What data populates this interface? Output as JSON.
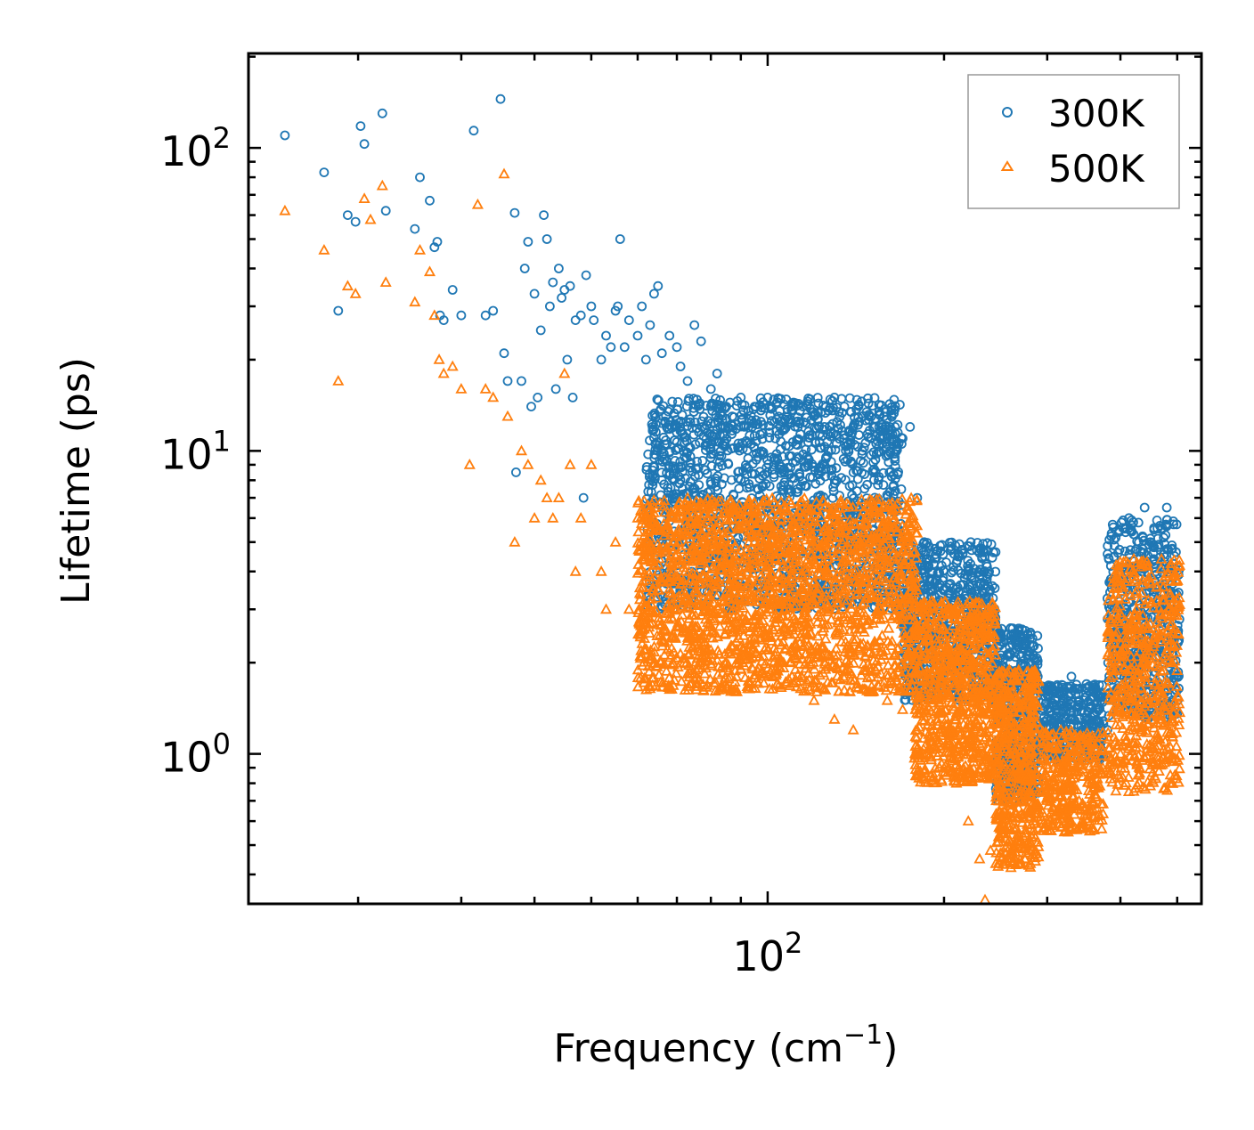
{
  "chart_data": {
    "type": "scatter",
    "title": "",
    "xlabel": "Frequency (cm",
    "xlabel_sup": "−1",
    "xlabel_end": ")",
    "ylabel": "Lifetime (ps)",
    "xscale": "log",
    "yscale": "log",
    "xlim": [
      13,
      550
    ],
    "ylim": [
      0.32,
      205
    ],
    "x_ticks": [
      {
        "value": 100,
        "base": "10",
        "exp": "2"
      }
    ],
    "y_ticks": [
      {
        "value": 1,
        "base": "10",
        "exp": "0"
      },
      {
        "value": 10,
        "base": "10",
        "exp": "1"
      },
      {
        "value": 100,
        "base": "10",
        "exp": "2"
      }
    ],
    "legend": {
      "placement": "top-right"
    },
    "series": [
      {
        "name": "300K",
        "color": "#1f77b4",
        "marker": "circle",
        "points": [
          [
            15,
            110
          ],
          [
            17.5,
            83
          ],
          [
            18.5,
            29
          ],
          [
            19.2,
            60
          ],
          [
            19.8,
            57
          ],
          [
            20.2,
            118
          ],
          [
            20.5,
            103
          ],
          [
            22,
            130
          ],
          [
            22.3,
            62
          ],
          [
            25,
            54
          ],
          [
            25.5,
            80
          ],
          [
            26.5,
            67
          ],
          [
            27,
            47
          ],
          [
            27.3,
            49
          ],
          [
            27.6,
            28
          ],
          [
            28,
            27
          ],
          [
            29,
            34
          ],
          [
            30,
            28
          ],
          [
            31.5,
            114
          ],
          [
            33,
            28
          ],
          [
            34,
            29
          ],
          [
            35.5,
            21
          ],
          [
            35,
            145
          ],
          [
            36,
            17
          ],
          [
            37,
            61
          ],
          [
            37.2,
            8.5
          ],
          [
            38,
            17
          ],
          [
            38.5,
            40
          ],
          [
            39,
            49
          ],
          [
            39.5,
            14
          ],
          [
            40,
            33
          ],
          [
            40.5,
            15
          ],
          [
            41,
            25
          ],
          [
            41.5,
            60
          ],
          [
            42,
            50
          ],
          [
            42.5,
            30
          ],
          [
            43,
            36
          ],
          [
            43.5,
            16
          ],
          [
            44,
            40
          ],
          [
            44.5,
            32
          ],
          [
            45,
            34
          ],
          [
            45.5,
            20
          ],
          [
            46,
            35
          ],
          [
            46.5,
            15
          ],
          [
            47,
            27
          ],
          [
            48,
            28
          ],
          [
            48.5,
            7
          ],
          [
            49,
            38
          ],
          [
            50,
            30
          ],
          [
            50.5,
            27
          ],
          [
            52,
            20
          ],
          [
            53,
            24
          ],
          [
            54,
            22
          ],
          [
            55,
            29
          ],
          [
            55.5,
            30
          ],
          [
            56,
            50
          ],
          [
            57,
            22
          ],
          [
            58,
            27
          ],
          [
            60,
            24
          ],
          [
            61,
            30
          ],
          [
            62,
            20
          ],
          [
            63,
            26
          ],
          [
            64,
            33
          ],
          [
            65,
            35
          ],
          [
            66,
            21
          ],
          [
            68,
            24
          ],
          [
            70,
            22
          ],
          [
            71,
            19
          ],
          [
            73,
            17
          ],
          [
            75,
            26
          ],
          [
            77,
            23
          ],
          [
            80,
            16
          ],
          [
            82,
            18
          ],
          [
            85,
            14
          ],
          [
            87,
            13
          ],
          [
            90,
            15
          ],
          [
            95,
            14
          ],
          [
            100,
            15
          ],
          [
            105,
            12
          ],
          [
            110,
            14
          ],
          [
            115,
            14
          ],
          [
            120,
            13
          ],
          [
            125,
            12
          ],
          [
            130,
            15
          ],
          [
            135,
            11
          ],
          [
            140,
            12
          ],
          [
            145,
            10
          ],
          [
            150,
            11
          ],
          [
            155,
            12
          ],
          [
            160,
            11
          ],
          [
            165,
            12
          ],
          [
            170,
            11
          ],
          [
            175,
            12
          ],
          [
            180,
            7
          ],
          [
            185,
            5
          ],
          [
            190,
            4
          ],
          [
            200,
            3.5
          ],
          [
            210,
            3.5
          ],
          [
            220,
            4
          ],
          [
            230,
            4.6
          ],
          [
            240,
            2.7
          ],
          [
            250,
            2.5
          ],
          [
            260,
            2.6
          ],
          [
            270,
            2.4
          ],
          [
            280,
            2.3
          ],
          [
            290,
            1.5
          ],
          [
            300,
            1.3
          ],
          [
            310,
            1.4
          ],
          [
            320,
            1.6
          ],
          [
            330,
            1.8
          ],
          [
            340,
            1.5
          ],
          [
            350,
            1.7
          ],
          [
            360,
            1.6
          ],
          [
            370,
            1.5
          ],
          [
            380,
            1.2
          ],
          [
            400,
            2
          ],
          [
            410,
            3
          ],
          [
            420,
            4
          ],
          [
            430,
            5
          ],
          [
            440,
            6.5
          ],
          [
            450,
            5
          ],
          [
            460,
            4
          ],
          [
            470,
            5.5
          ],
          [
            480,
            6.5
          ],
          [
            490,
            3
          ]
        ],
        "dense_bands": [
          [
            62,
            170,
            3.0,
            15.0,
            1700
          ],
          [
            170,
            245,
            1.5,
            5.0,
            650
          ],
          [
            245,
            290,
            0.7,
            2.6,
            450
          ],
          [
            292,
            375,
            0.95,
            1.7,
            320
          ],
          [
            380,
            505,
            1.3,
            6.0,
            520
          ]
        ]
      },
      {
        "name": "500K",
        "color": "#ff7f0e",
        "marker": "triangle",
        "points": [
          [
            15,
            62
          ],
          [
            17.5,
            46
          ],
          [
            18.5,
            17
          ],
          [
            19.2,
            35
          ],
          [
            19.8,
            33
          ],
          [
            20.5,
            68
          ],
          [
            21,
            58
          ],
          [
            22,
            75
          ],
          [
            22.3,
            36
          ],
          [
            25,
            31
          ],
          [
            25.5,
            46
          ],
          [
            26.5,
            39
          ],
          [
            27,
            28
          ],
          [
            27.5,
            20
          ],
          [
            28,
            18
          ],
          [
            29,
            19
          ],
          [
            30,
            16
          ],
          [
            31,
            9
          ],
          [
            32,
            65
          ],
          [
            33,
            16
          ],
          [
            34,
            15
          ],
          [
            35.5,
            82
          ],
          [
            36,
            13
          ],
          [
            37,
            5
          ],
          [
            38,
            10
          ],
          [
            39,
            9
          ],
          [
            40,
            6
          ],
          [
            41,
            8
          ],
          [
            42,
            7
          ],
          [
            43,
            6
          ],
          [
            44,
            7
          ],
          [
            45,
            18
          ],
          [
            46,
            9
          ],
          [
            47,
            4
          ],
          [
            48,
            6
          ],
          [
            50,
            9
          ],
          [
            52,
            4
          ],
          [
            53,
            3
          ],
          [
            55,
            5
          ],
          [
            58,
            3
          ],
          [
            60,
            6
          ],
          [
            62,
            5
          ],
          [
            65,
            4
          ],
          [
            68,
            3.5
          ],
          [
            70,
            3
          ],
          [
            72,
            2
          ],
          [
            75,
            2.5
          ],
          [
            80,
            2.2
          ],
          [
            85,
            2
          ],
          [
            90,
            1.9
          ],
          [
            95,
            2.4
          ],
          [
            100,
            2.2
          ],
          [
            110,
            1.8
          ],
          [
            120,
            1.5
          ],
          [
            130,
            1.3
          ],
          [
            140,
            1.2
          ],
          [
            150,
            1.6
          ],
          [
            160,
            1.5
          ],
          [
            170,
            1.4
          ],
          [
            180,
            1.2
          ],
          [
            190,
            1.1
          ],
          [
            200,
            0.9
          ],
          [
            210,
            0.8
          ],
          [
            220,
            0.6
          ],
          [
            230,
            0.45
          ],
          [
            235,
            0.33
          ],
          [
            240,
            0.48
          ],
          [
            250,
            0.55
          ],
          [
            260,
            0.65
          ],
          [
            270,
            0.7
          ],
          [
            280,
            0.75
          ],
          [
            300,
            0.6
          ],
          [
            320,
            0.65
          ],
          [
            340,
            0.7
          ],
          [
            360,
            0.8
          ],
          [
            380,
            0.9
          ],
          [
            400,
            1
          ],
          [
            420,
            1.3
          ],
          [
            440,
            2
          ],
          [
            460,
            2.5
          ],
          [
            480,
            2.2
          ],
          [
            490,
            2
          ]
        ],
        "dense_bands": [
          [
            60,
            180,
            1.6,
            7.0,
            2100
          ],
          [
            178,
            245,
            0.8,
            3.2,
            800
          ],
          [
            245,
            290,
            0.42,
            1.9,
            520
          ],
          [
            292,
            375,
            0.55,
            1.2,
            340
          ],
          [
            380,
            505,
            0.75,
            4.4,
            560
          ]
        ]
      }
    ]
  }
}
